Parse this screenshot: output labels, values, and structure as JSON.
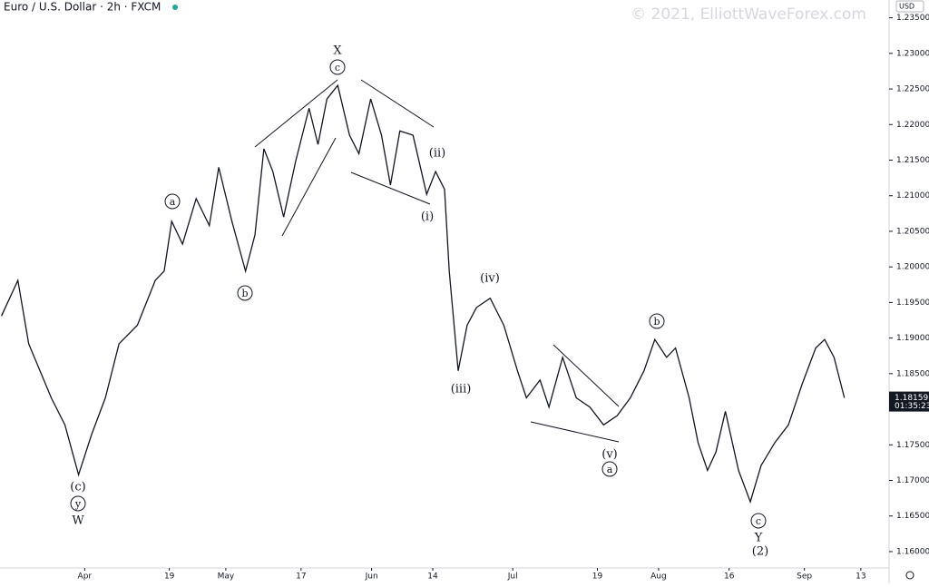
{
  "chart_data": {
    "type": "line",
    "title": "Euro / U.S. Dollar · 2h · FXCM",
    "watermark": "© 2021, ElliottWaveForex.com",
    "currency": "USD",
    "last_price": 1.18159,
    "countdown": "01:35:23",
    "color": "#131722",
    "x": [
      73.3,
      76.8,
      79.1,
      83.9,
      86.8,
      89.7,
      92.5,
      95.4,
      98.3,
      102.2,
      106.0,
      107.9,
      109.5,
      111.8,
      114.7,
      117.5,
      119.5,
      122.3,
      125.2,
      127.2,
      129.1,
      131.0,
      133.3,
      135.8,
      138.7,
      140.6,
      142.5,
      144.8,
      147.3,
      149.3,
      151.8,
      154.1,
      156.0,
      158.0,
      160.8,
      163.7,
      165.6,
      167.5,
      168.5,
      170.4,
      172.3,
      174.3,
      177.2,
      180.1,
      183.0,
      184.9,
      187.8,
      189.7,
      192.6,
      195.5,
      198.4,
      201.3,
      204.2,
      207.0,
      209.9,
      212.2,
      214.7,
      216.6,
      219.5,
      221.4,
      223.4,
      225.2,
      227.2,
      230.0,
      232.5,
      234.8,
      237.7,
      240.6,
      243.5,
      246.4,
      248.3,
      250.3,
      252.5
    ],
    "series": [
      {
        "name": "EURUSD",
        "color": "#131722",
        "values": [
          1.1931,
          1.1981,
          1.1892,
          1.1816,
          1.1778,
          1.1708,
          1.1765,
          1.1816,
          1.1892,
          1.1918,
          1.1981,
          1.1994,
          1.2064,
          1.2032,
          1.2096,
          1.2058,
          1.214,
          1.2064,
          1.1994,
          1.2045,
          1.2166,
          1.2134,
          1.207,
          1.2147,
          1.2223,
          1.2172,
          1.2236,
          1.2255,
          1.2185,
          1.2159,
          1.2236,
          1.2185,
          1.2115,
          1.2191,
          1.2185,
          1.2102,
          1.2134,
          1.2109,
          1.1994,
          1.1854,
          1.1918,
          1.1943,
          1.1956,
          1.1918,
          1.1854,
          1.1816,
          1.1841,
          1.1803,
          1.1873,
          1.1816,
          1.1803,
          1.1778,
          1.1791,
          1.1816,
          1.1854,
          1.1898,
          1.1873,
          1.1886,
          1.1816,
          1.1753,
          1.1714,
          1.174,
          1.1797,
          1.1714,
          1.167,
          1.1721,
          1.1753,
          1.1778,
          1.1835,
          1.1886,
          1.1898,
          1.1873,
          1.1816
        ]
      }
    ],
    "xlim": [
      73,
      262
    ],
    "xticks": [
      {
        "value": 91,
        "label": "Apr"
      },
      {
        "value": 109,
        "label": "19"
      },
      {
        "value": 121,
        "label": "May"
      },
      {
        "value": 137,
        "label": "17"
      },
      {
        "value": 152,
        "label": "Jun"
      },
      {
        "value": 165,
        "label": "14"
      },
      {
        "value": 182,
        "label": "Jul"
      },
      {
        "value": 200,
        "label": "19"
      },
      {
        "value": 213,
        "label": "Aug"
      },
      {
        "value": 228,
        "label": "16"
      },
      {
        "value": 244,
        "label": "Sep"
      },
      {
        "value": 256,
        "label": "13"
      }
    ],
    "ylim": [
      1.1577,
      1.2375
    ],
    "yticks": [
      {
        "value": 1.16,
        "label": "1.16000"
      },
      {
        "value": 1.165,
        "label": "1.16500"
      },
      {
        "value": 1.17,
        "label": "1.17000"
      },
      {
        "value": 1.175,
        "label": "1.17500"
      },
      {
        "value": 1.18,
        "label": "1.18000"
      },
      {
        "value": 1.185,
        "label": "1.18500"
      },
      {
        "value": 1.19,
        "label": "1.19000"
      },
      {
        "value": 1.195,
        "label": "1.19500"
      },
      {
        "value": 1.2,
        "label": "1.20000"
      },
      {
        "value": 1.205,
        "label": "1.20500"
      },
      {
        "value": 1.21,
        "label": "1.21000"
      },
      {
        "value": 1.215,
        "label": "1.21500"
      },
      {
        "value": 1.22,
        "label": "1.22000"
      },
      {
        "value": 1.225,
        "label": "1.22500"
      },
      {
        "value": 1.23,
        "label": "1.23000"
      },
      {
        "value": 1.235,
        "label": "1.23500"
      }
    ],
    "annotations": [
      "X",
      "c",
      "a",
      "b",
      "(ii)",
      "(i)",
      "(iv)",
      "(iii)",
      "b",
      "(v)",
      "a",
      "(c)",
      "y",
      "W",
      "c",
      "Y",
      "(2)"
    ]
  }
}
